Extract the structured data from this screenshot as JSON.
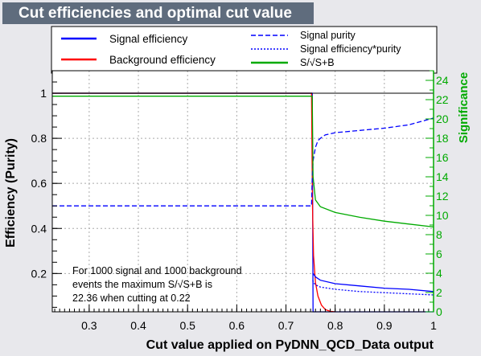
{
  "title": "Cut efficiencies and optimal cut value",
  "chart_data": {
    "type": "line",
    "xlabel": "Cut value applied on PyDNN_QCD_Data output",
    "ylabel": "Efficiency (Purity)",
    "y2label": "Significance",
    "xlim": [
      0.225,
      1.0
    ],
    "ylim": [
      0.03,
      1.1
    ],
    "y2lim": [
      0,
      25
    ],
    "x_ticks": [
      "0.3",
      "0.4",
      "0.5",
      "0.6",
      "0.7",
      "0.8",
      "0.9",
      "1"
    ],
    "y_ticks": [
      "0.2",
      "0.4",
      "0.6",
      "0.8",
      "1"
    ],
    "y2_ticks": [
      "0",
      "2",
      "4",
      "6",
      "8",
      "10",
      "12",
      "14",
      "16",
      "18",
      "20",
      "22",
      "24"
    ],
    "grid": true,
    "legend_left": [
      {
        "name": "Signal efficiency",
        "color": "#0000ff",
        "style": "solid"
      },
      {
        "name": "Background efficiency",
        "color": "#ff0000",
        "style": "solid"
      }
    ],
    "legend_right": [
      {
        "name": "Signal purity",
        "color": "#0000ff",
        "style": "dashed"
      },
      {
        "name": "Signal efficiency*purity",
        "color": "#0000ff",
        "style": "dotted"
      },
      {
        "name": "S/√S+B",
        "color": "#00aa00",
        "style": "solid"
      }
    ],
    "annotation": [
      "For 1000 signal and 1000 background",
      "events the maximum S/√S+B is",
      "22.36 when cutting at  0.22"
    ],
    "series": [
      {
        "name": "Signal efficiency",
        "axis": "left",
        "color": "#0000ff",
        "x": [
          0.225,
          0.752,
          0.7535,
          0.755,
          1.0
        ],
        "y": [
          1.0,
          1.0,
          1.0,
          0.03,
          0.03
        ]
      },
      {
        "name": "Background efficiency",
        "axis": "left",
        "color": "#ff0000",
        "x": [
          0.225,
          0.752,
          0.754,
          0.756,
          0.76,
          0.765,
          0.772,
          0.78,
          0.79,
          0.8
        ],
        "y": [
          1.0,
          1.0,
          0.5,
          0.28,
          0.16,
          0.1,
          0.06,
          0.04,
          0.032,
          0.03
        ]
      },
      {
        "name": "Signal purity",
        "axis": "left",
        "color": "#0000ff",
        "x": [
          0.225,
          0.752,
          0.7535,
          0.755,
          0.76,
          0.765,
          0.77,
          0.78,
          0.8,
          0.85,
          0.9,
          0.95,
          1.0
        ],
        "y": [
          0.5,
          0.5,
          0.63,
          0.7,
          0.76,
          0.79,
          0.8,
          0.815,
          0.825,
          0.835,
          0.845,
          0.86,
          0.89
        ]
      },
      {
        "name": "Signal efficiency*purity",
        "axis": "left",
        "color": "#0000ff",
        "x": [
          0.7545,
          0.756,
          0.76,
          0.77,
          0.8,
          0.85,
          0.9,
          0.95,
          1.0
        ],
        "y": [
          0.17,
          0.16,
          0.15,
          0.14,
          0.13,
          0.12,
          0.115,
          0.11,
          0.105
        ]
      },
      {
        "name": "S/√S+B",
        "axis": "right",
        "color": "#00aa00",
        "x": [
          0.225,
          0.752,
          0.7535,
          0.755,
          0.76,
          0.77,
          0.8,
          0.85,
          0.9,
          0.95,
          1.0
        ],
        "y": [
          22.36,
          22.36,
          22.36,
          14.0,
          11.6,
          10.9,
          10.3,
          9.8,
          9.4,
          9.1,
          8.8
        ]
      },
      {
        "name": "Signal efficiency (lower branch)",
        "axis": "left",
        "color": "#0000ff",
        "x": [
          0.755,
          0.76,
          0.77,
          0.8,
          0.85,
          0.9,
          0.95,
          1.0
        ],
        "y": [
          0.2,
          0.185,
          0.17,
          0.155,
          0.145,
          0.135,
          0.13,
          0.12
        ]
      }
    ]
  }
}
